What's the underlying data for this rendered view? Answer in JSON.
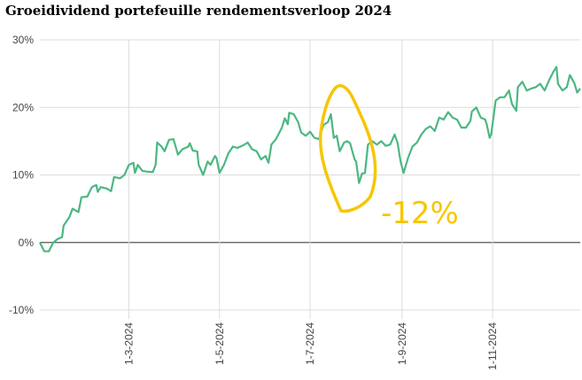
{
  "chart_data": {
    "type": "line",
    "title": "Groeidividend portefeuille rendementsverloop 2024",
    "xlabel": "",
    "ylabel": "",
    "ylim": [
      -10,
      30
    ],
    "xlim": [
      "2024-01-01",
      "2024-12-30"
    ],
    "grid": true,
    "y_ticks": [
      "30%",
      "20%",
      "10%",
      "0%",
      "-10%"
    ],
    "y_tick_values": [
      30,
      20,
      10,
      0,
      -10
    ],
    "x_ticks": [
      "1-3-2024",
      "1-5-2024",
      "1-7-2024",
      "1-9-2024",
      "1-11-2024"
    ],
    "x_tick_dates": [
      "2024-03-01",
      "2024-05-01",
      "2024-07-01",
      "2024-09-01",
      "2024-11-01"
    ],
    "line_color": "#4cb782",
    "series": [
      {
        "x": [
          "2024-01-01",
          "2024-01-04",
          "2024-01-07",
          "2024-01-10",
          "2024-01-13",
          "2024-01-16",
          "2024-01-17",
          "2024-01-21",
          "2024-01-23",
          "2024-01-27",
          "2024-01-29",
          "2024-02-02",
          "2024-02-05",
          "2024-02-08",
          "2024-02-09",
          "2024-02-11",
          "2024-02-15",
          "2024-02-18",
          "2024-02-20",
          "2024-02-24",
          "2024-02-27",
          "2024-03-01",
          "2024-03-04",
          "2024-03-05",
          "2024-03-07",
          "2024-03-10",
          "2024-03-13",
          "2024-03-17",
          "2024-03-19",
          "2024-03-20",
          "2024-03-23",
          "2024-03-25",
          "2024-03-28",
          "2024-03-31",
          "2024-04-03",
          "2024-04-06",
          "2024-04-10",
          "2024-04-11",
          "2024-04-13",
          "2024-04-16",
          "2024-04-17",
          "2024-04-20",
          "2024-04-23",
          "2024-04-25",
          "2024-04-28",
          "2024-04-29",
          "2024-05-01",
          "2024-05-04",
          "2024-05-07",
          "2024-05-10",
          "2024-05-13",
          "2024-05-17",
          "2024-05-20",
          "2024-05-23",
          "2024-05-26",
          "2024-05-29",
          "2024-06-01",
          "2024-06-03",
          "2024-06-05",
          "2024-06-08",
          "2024-06-12",
          "2024-06-14",
          "2024-06-16",
          "2024-06-17",
          "2024-06-20",
          "2024-06-23",
          "2024-06-25",
          "2024-06-28",
          "2024-07-01",
          "2024-07-04",
          "2024-07-07",
          "2024-07-10",
          "2024-07-13",
          "2024-07-15",
          "2024-07-17",
          "2024-07-19",
          "2024-07-21",
          "2024-07-24",
          "2024-07-26",
          "2024-07-28",
          "2024-07-31",
          "2024-08-01",
          "2024-08-03",
          "2024-08-05",
          "2024-08-07",
          "2024-08-09",
          "2024-08-12",
          "2024-08-15",
          "2024-08-18",
          "2024-08-21",
          "2024-08-24",
          "2024-08-27",
          "2024-08-29",
          "2024-08-31",
          "2024-09-02",
          "2024-09-05",
          "2024-09-08",
          "2024-09-11",
          "2024-09-14",
          "2024-09-17",
          "2024-09-20",
          "2024-09-23",
          "2024-09-26",
          "2024-09-29",
          "2024-10-02",
          "2024-10-05",
          "2024-10-08",
          "2024-10-11",
          "2024-10-14",
          "2024-10-17",
          "2024-10-18",
          "2024-10-21",
          "2024-10-24",
          "2024-10-27",
          "2024-10-28",
          "2024-10-30",
          "2024-10-31",
          "2024-11-03",
          "2024-11-06",
          "2024-11-09",
          "2024-11-12",
          "2024-11-14",
          "2024-11-17",
          "2024-11-18",
          "2024-11-21",
          "2024-11-24",
          "2024-11-27",
          "2024-11-30",
          "2024-12-03",
          "2024-12-06",
          "2024-12-09",
          "2024-12-12",
          "2024-12-14",
          "2024-12-15",
          "2024-12-18",
          "2024-12-21",
          "2024-12-23",
          "2024-12-26",
          "2024-12-28",
          "2024-12-30"
        ],
        "values": [
          0,
          -1.3,
          -1.3,
          0,
          0.5,
          0.8,
          2.5,
          3.8,
          5,
          4.5,
          6.7,
          6.8,
          8.2,
          8.5,
          7.5,
          8.2,
          8,
          7.6,
          9.7,
          9.5,
          10,
          11.5,
          11.8,
          10.3,
          11.5,
          10.6,
          10.5,
          10.4,
          11.5,
          14.8,
          14.2,
          13.5,
          15.2,
          15.3,
          13,
          13.8,
          14.2,
          14.7,
          13.6,
          13.5,
          11.5,
          10,
          12,
          11.5,
          12.8,
          12.5,
          10.3,
          11.5,
          13.2,
          14.2,
          14,
          14.4,
          14.8,
          13.8,
          13.5,
          12.3,
          12.8,
          11.8,
          14.5,
          15.3,
          17,
          18.4,
          17.5,
          19.2,
          19,
          17.8,
          16.3,
          15.8,
          16.4,
          15.5,
          15.3,
          17.4,
          17.8,
          19,
          15.5,
          15.8,
          13.5,
          14.8,
          15,
          14.7,
          12.3,
          12,
          8.8,
          10.2,
          10.3,
          14.5,
          15,
          14.5,
          15,
          14.3,
          14.5,
          16,
          14.7,
          12,
          10.3,
          12.5,
          14.2,
          14.8,
          16,
          16.8,
          17.2,
          16.5,
          18.5,
          18.2,
          19.3,
          18.5,
          18.2,
          17,
          17,
          18,
          19.4,
          20,
          18.5,
          18.2,
          17.5,
          15.5,
          16,
          21,
          21.5,
          21.5,
          22.5,
          20.5,
          19.5,
          23,
          23.8,
          22.5,
          22.8,
          23,
          23.5,
          22.5,
          24,
          25.3,
          26,
          23.5,
          22.5,
          23,
          24.8,
          23.6,
          22.2,
          22.8
        ]
      }
    ],
    "annotations": [
      {
        "text": "-12%",
        "color": "#f7c600",
        "shape": "hand-drawn ellipse around July drop"
      }
    ]
  }
}
